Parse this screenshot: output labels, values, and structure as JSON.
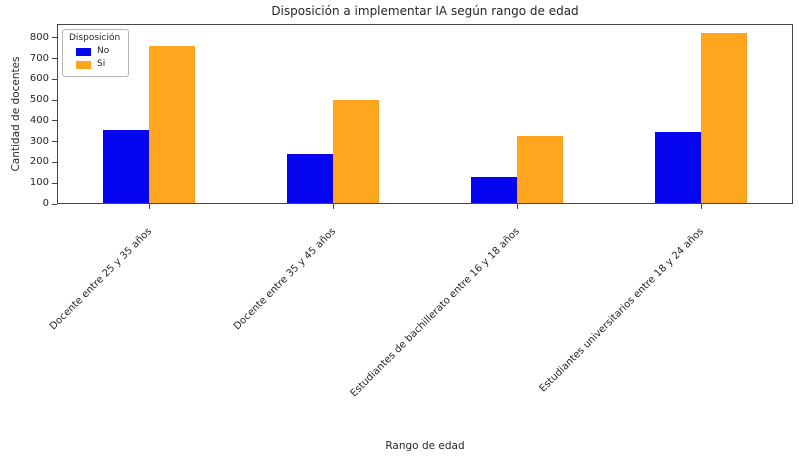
{
  "chart_data": {
    "type": "bar",
    "title": "Disposición a implementar IA según rango de edad",
    "xlabel": "Rango de edad",
    "ylabel": "Cantidad de docentes",
    "legend_title": "Disposición",
    "legend_position": "upper left",
    "grid": false,
    "x_tick_label_rotation": 45,
    "categories": [
      "Docente entre 25 y 35 años",
      "Docente entre 35 y 45 años",
      "Estudiantes de bachillerato entre 16 y 18 años",
      "Estudiantes universitarios entre 18 y 24 años"
    ],
    "series": [
      {
        "name": "No",
        "color": "#0505f0",
        "values": [
          355,
          240,
          130,
          345
        ]
      },
      {
        "name": "Si",
        "color": "#ffa51e",
        "values": [
          760,
          500,
          325,
          825
        ]
      }
    ],
    "ylim": [
      0,
      866
    ],
    "yticks": [
      0,
      100,
      200,
      300,
      400,
      500,
      600,
      700,
      800
    ],
    "colors": {
      "axis": "#464646",
      "text": "#262626",
      "legend_border": "#b5b5b5"
    }
  }
}
